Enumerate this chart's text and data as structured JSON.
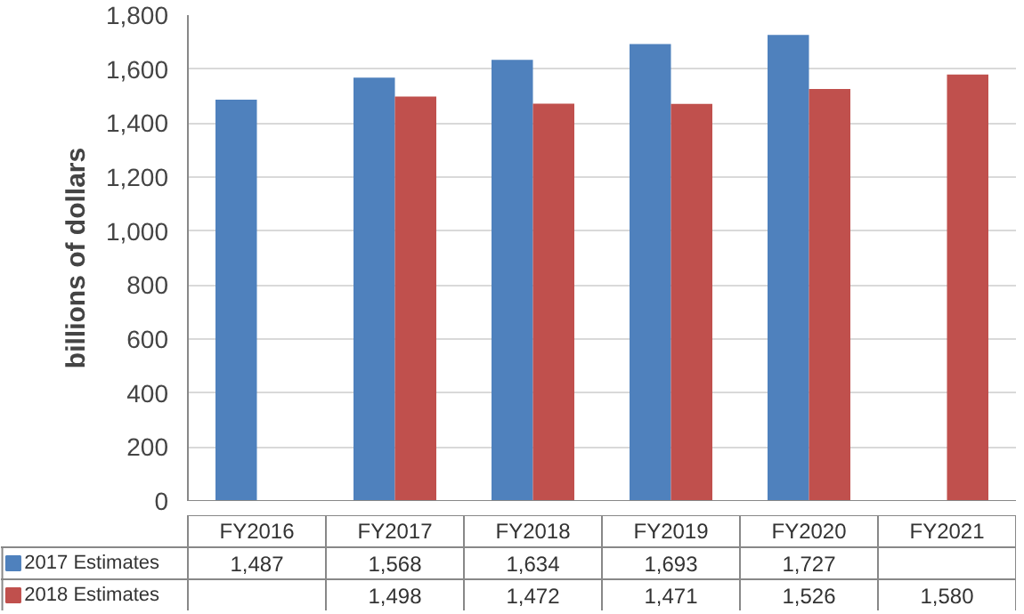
{
  "chart_data": {
    "type": "bar",
    "ylabel": "billions of dollars",
    "categories": [
      "FY2016",
      "FY2017",
      "FY2018",
      "FY2019",
      "FY2020",
      "FY2021"
    ],
    "series": [
      {
        "name": "2017 Estimates",
        "color": "#4f81bd",
        "values": [
          1487,
          1568,
          1634,
          1693,
          1727,
          null
        ],
        "value_labels": [
          "1,487",
          "1,568",
          "1,634",
          "1,693",
          "1,727",
          null
        ]
      },
      {
        "name": "2018 Estimates",
        "color": "#c0504d",
        "values": [
          null,
          1498,
          1472,
          1471,
          1526,
          1580
        ],
        "value_labels": [
          null,
          "1,498",
          "1,472",
          "1,471",
          "1,526",
          "1,580"
        ]
      }
    ],
    "ylim": [
      0,
      1800
    ],
    "yticks": [
      0,
      200,
      400,
      600,
      800,
      {
        "value": 1000,
        "label": "1,000"
      },
      {
        "value": 1200,
        "label": "1,200"
      },
      {
        "value": 1400,
        "label": "1,400"
      },
      {
        "value": 1600,
        "label": "1,600"
      },
      {
        "value": 1800,
        "label": "1,800"
      }
    ],
    "grid": "y",
    "legend": "bottom"
  }
}
